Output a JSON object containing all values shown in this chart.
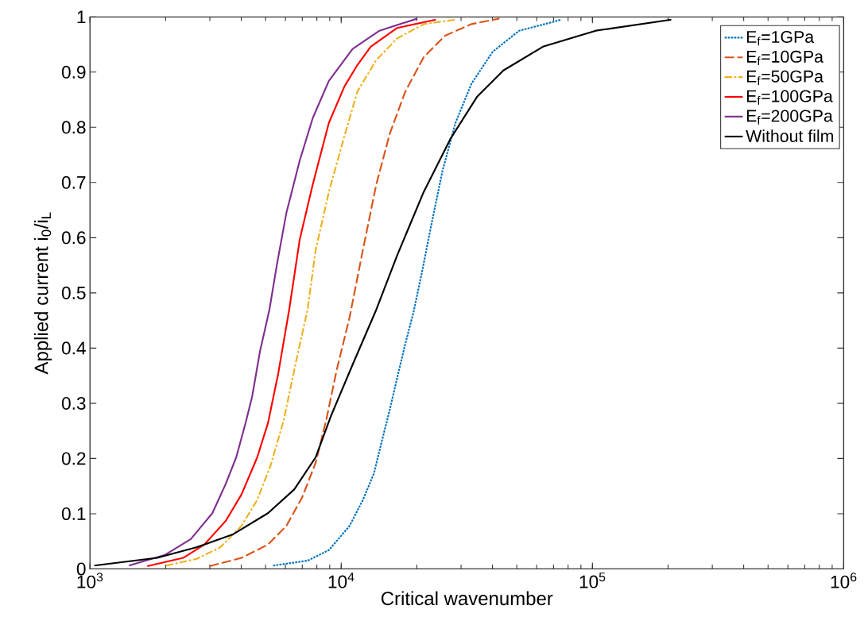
{
  "chart_data": {
    "type": "line",
    "xlabel": "Critical wavenumber",
    "ylabel": "Applied current i$_{0}$/i$_{L}$",
    "log": "x",
    "xlim": [
      1000,
      1000000
    ],
    "ylim": [
      0,
      1
    ],
    "xticks": [
      {
        "value": 1000,
        "label": "10$^{3}$"
      },
      {
        "value": 10000,
        "label": "10$^{4}$"
      },
      {
        "value": 100000,
        "label": "10$^{5}$"
      },
      {
        "value": 1000000,
        "label": "10$^{6}$"
      }
    ],
    "yticks": [
      0,
      0.1,
      0.2,
      0.3,
      0.4,
      0.5,
      0.6,
      0.7,
      0.8,
      0.9,
      1
    ],
    "grid": false,
    "legend": "top right",
    "marker": "none",
    "series": [
      {
        "name": "E$_{f}$=1GPa",
        "color": "#0072bd",
        "line_style": "dotted",
        "x": [
          5360,
          7350,
          8930,
          10800,
          12200,
          13500,
          14500,
          15600,
          16700,
          18000,
          19400,
          20800,
          22900,
          25300,
          28500,
          33000,
          40100,
          51100,
          75300
        ],
        "values": [
          0.006,
          0.015,
          0.034,
          0.078,
          0.125,
          0.173,
          0.231,
          0.288,
          0.346,
          0.408,
          0.465,
          0.53,
          0.626,
          0.721,
          0.808,
          0.879,
          0.937,
          0.975,
          0.995
        ]
      },
      {
        "name": "E$_{f}$=10GPa",
        "color": "#d95319",
        "line_style": "dashed",
        "x": [
          2990,
          4010,
          5110,
          6050,
          7000,
          7910,
          8710,
          9590,
          10800,
          12200,
          13800,
          15600,
          18000,
          21300,
          25900,
          33000,
          42600
        ],
        "values": [
          0.005,
          0.02,
          0.044,
          0.078,
          0.13,
          0.192,
          0.269,
          0.36,
          0.456,
          0.578,
          0.697,
          0.788,
          0.865,
          0.927,
          0.966,
          0.987,
          0.997
        ]
      },
      {
        "name": "E$_{f}$=50GPa",
        "color": "#edb120",
        "line_style": "dashdot",
        "x": [
          2010,
          2650,
          3300,
          4010,
          4630,
          5240,
          5900,
          6670,
          7350,
          7910,
          8930,
          10300,
          11600,
          13800,
          16700,
          21300,
          28500
        ],
        "values": [
          0.006,
          0.018,
          0.039,
          0.078,
          0.125,
          0.188,
          0.269,
          0.384,
          0.47,
          0.577,
          0.683,
          0.784,
          0.865,
          0.922,
          0.961,
          0.987,
          0.995
        ]
      },
      {
        "name": "E$_{f}$=100GPa",
        "color": "#ff0000",
        "line_style": "solid",
        "x": [
          1690,
          2350,
          2850,
          3470,
          4010,
          4630,
          5110,
          5620,
          6210,
          6840,
          7710,
          8930,
          10300,
          11600,
          13100,
          16700,
          23800
        ],
        "values": [
          0.005,
          0.02,
          0.044,
          0.087,
          0.135,
          0.202,
          0.264,
          0.355,
          0.47,
          0.597,
          0.697,
          0.808,
          0.874,
          0.913,
          0.946,
          0.98,
          0.995
        ]
      },
      {
        "name": "E$_{f}$=200GPa",
        "color": "#7e2f8e",
        "line_style": "solid",
        "x": [
          1430,
          1980,
          2520,
          3070,
          3470,
          3820,
          4160,
          4420,
          4750,
          5180,
          5560,
          6050,
          6840,
          7710,
          8930,
          11100,
          14200,
          20100
        ],
        "values": [
          0.006,
          0.025,
          0.054,
          0.101,
          0.154,
          0.202,
          0.264,
          0.312,
          0.394,
          0.47,
          0.554,
          0.645,
          0.74,
          0.817,
          0.884,
          0.942,
          0.975,
          0.997
        ]
      },
      {
        "name": "Without film",
        "color": "#000000",
        "line_style": "solid",
        "x": [
          1040,
          1850,
          2650,
          3720,
          5110,
          6500,
          7910,
          9140,
          11100,
          13800,
          16700,
          21300,
          27200,
          34700,
          44200,
          63500,
          103000,
          206000
        ],
        "values": [
          0.006,
          0.02,
          0.039,
          0.063,
          0.101,
          0.144,
          0.202,
          0.279,
          0.37,
          0.47,
          0.568,
          0.683,
          0.779,
          0.855,
          0.903,
          0.946,
          0.975,
          0.995
        ]
      }
    ]
  }
}
